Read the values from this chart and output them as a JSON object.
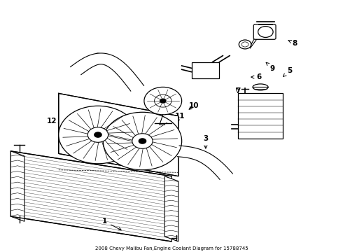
{
  "title": "2008 Chevy Malibu Fan,Engine Coolant Diagram for 15788745",
  "bg_color": "#ffffff",
  "line_color": "#000000",
  "label_color": "#000000",
  "figsize": [
    4.9,
    3.6
  ],
  "dpi": 100,
  "labels": {
    "1": [
      0.305,
      0.88,
      0.36,
      0.92
    ],
    "2": [
      0.285,
      0.22,
      0.32,
      0.27
    ],
    "3": [
      0.6,
      0.55,
      0.6,
      0.6
    ],
    "4": [
      0.72,
      0.43,
      0.735,
      0.47
    ],
    "5": [
      0.845,
      0.28,
      0.825,
      0.305
    ],
    "6": [
      0.755,
      0.305,
      0.725,
      0.305
    ],
    "7": [
      0.695,
      0.36,
      0.685,
      0.34
    ],
    "8": [
      0.86,
      0.17,
      0.835,
      0.155
    ],
    "9": [
      0.795,
      0.27,
      0.775,
      0.245
    ],
    "10": [
      0.565,
      0.42,
      0.545,
      0.44
    ],
    "11": [
      0.525,
      0.46,
      0.515,
      0.485
    ],
    "12": [
      0.15,
      0.48,
      0.185,
      0.485
    ]
  }
}
